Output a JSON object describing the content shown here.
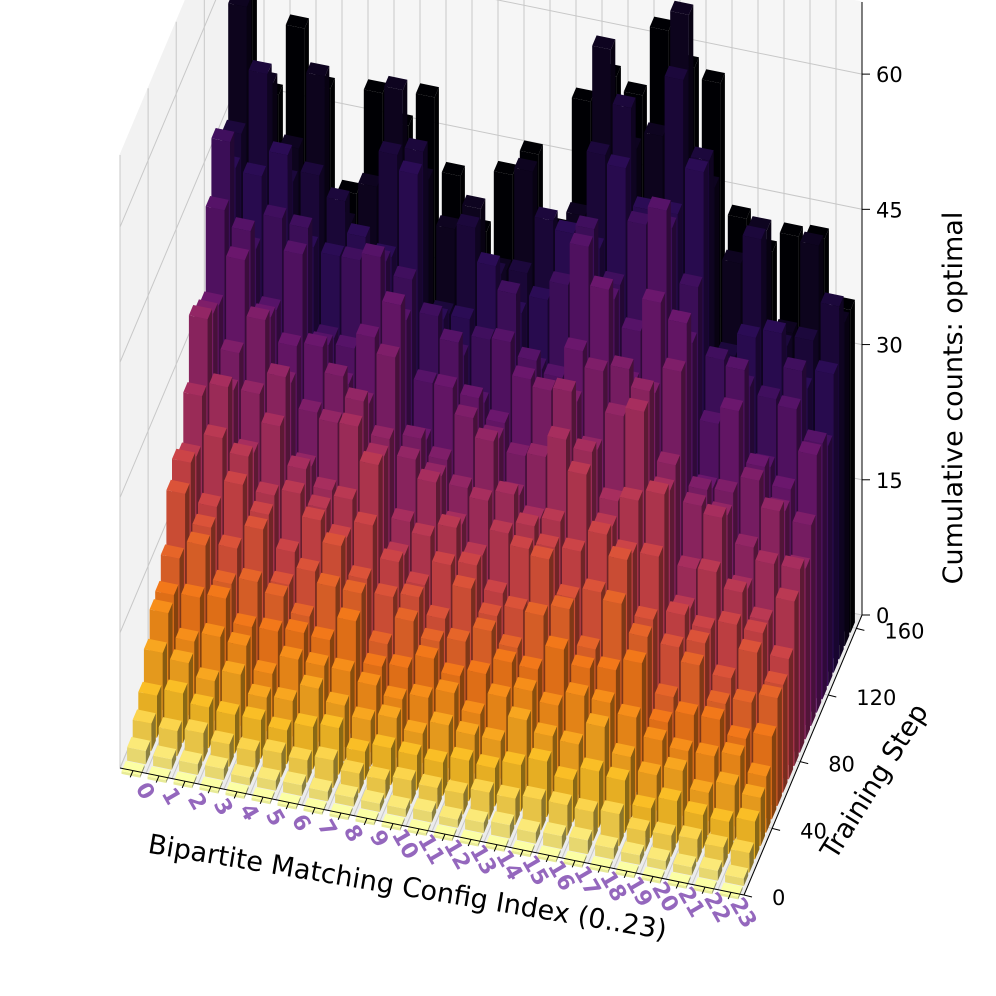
{
  "chart_data": {
    "type": "bar3d",
    "title": "",
    "xlabel": "Bipartite Matching Config Index (0..23)",
    "ylabel": "Training Step",
    "zlabel": "Cumulative counts: optimal",
    "x_categories": [
      "0",
      "1",
      "2",
      "3",
      "4",
      "5",
      "6",
      "7",
      "8",
      "9",
      "10",
      "11",
      "12",
      "13",
      "14",
      "15",
      "16",
      "17",
      "18",
      "19",
      "20",
      "21",
      "22",
      "23"
    ],
    "x_tick_color": "#9467bd",
    "y_ticks": [
      0,
      40,
      80,
      120,
      160
    ],
    "z_ticks": [
      0,
      15,
      30,
      45,
      60
    ],
    "zlim": [
      0,
      68
    ],
    "ylim": [
      0,
      168
    ],
    "colormap": "inferno (reversed): light yellow at early steps to black at late steps",
    "grid": true,
    "training_steps": [
      0,
      8,
      16,
      24,
      32,
      40,
      48,
      56,
      64,
      72,
      80,
      88,
      96,
      104,
      112,
      120,
      128,
      136,
      144,
      152,
      160
    ],
    "series_final_counts": [
      {
        "config": "0",
        "final": 56
      },
      {
        "config": "1",
        "final": 53
      },
      {
        "config": "2",
        "final": 50
      },
      {
        "config": "3",
        "final": 49
      },
      {
        "config": "4",
        "final": 41
      },
      {
        "config": "5",
        "final": 44
      },
      {
        "config": "6",
        "final": 50
      },
      {
        "config": "7",
        "final": 51
      },
      {
        "config": "8",
        "final": 38
      },
      {
        "config": "9",
        "final": 41
      },
      {
        "config": "10",
        "final": 41
      },
      {
        "config": "11",
        "final": 44
      },
      {
        "config": "12",
        "final": 43
      },
      {
        "config": "13",
        "final": 48
      },
      {
        "config": "14",
        "final": 58
      },
      {
        "config": "15",
        "final": 59
      },
      {
        "config": "16",
        "final": 56
      },
      {
        "config": "17",
        "final": 65
      },
      {
        "config": "18",
        "final": 58
      },
      {
        "config": "19",
        "final": 40
      },
      {
        "config": "20",
        "final": 46
      },
      {
        "config": "21",
        "final": 40
      },
      {
        "config": "22",
        "final": 42
      },
      {
        "config": "23",
        "final": 40
      }
    ]
  }
}
